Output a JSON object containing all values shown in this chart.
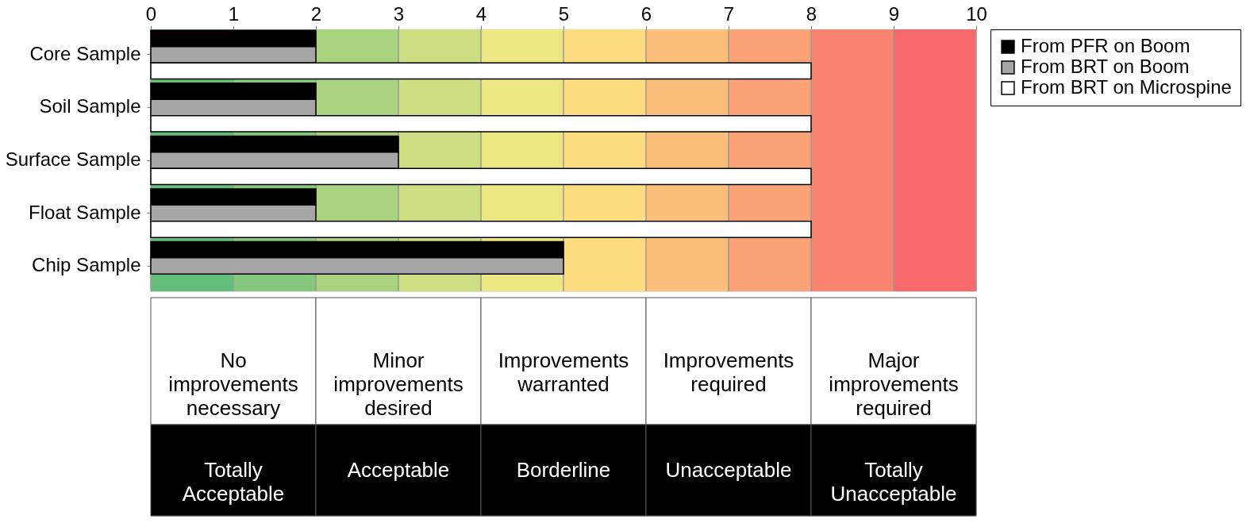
{
  "chart_data": {
    "type": "bar",
    "orientation": "horizontal",
    "categories": [
      "Core Sample",
      "Soil Sample",
      "Surface Sample",
      "Float Sample",
      "Chip Sample"
    ],
    "series": [
      {
        "name": "From PFR on Boom",
        "color": "#000000",
        "values": [
          2,
          2,
          3,
          2,
          5
        ]
      },
      {
        "name": "From BRT on Boom",
        "color": "#a6a6a6",
        "values": [
          2,
          2,
          3,
          2,
          5
        ]
      },
      {
        "name": "From BRT on Microspine",
        "color": "#ffffff",
        "values": [
          8,
          8,
          8,
          8,
          null
        ]
      }
    ],
    "xlim": [
      0,
      10
    ],
    "xticks": [
      0,
      1,
      2,
      3,
      4,
      5,
      6,
      7,
      8,
      9,
      10
    ],
    "grid": "x",
    "legend": "right",
    "bands": [
      {
        "axis": "x",
        "from": 0,
        "to": 1,
        "label": null,
        "color": "#63be7b"
      },
      {
        "axis": "x",
        "from": 1,
        "to": 2,
        "label": null,
        "color": "#85c87d"
      },
      {
        "axis": "x",
        "from": 2,
        "to": 3,
        "label": null,
        "color": "#a9d27f"
      },
      {
        "axis": "x",
        "from": 3,
        "to": 4,
        "label": null,
        "color": "#ccdd82"
      },
      {
        "axis": "x",
        "from": 4,
        "to": 5,
        "label": null,
        "color": "#ece683"
      },
      {
        "axis": "x",
        "from": 5,
        "to": 6,
        "label": null,
        "color": "#fedd81"
      },
      {
        "axis": "x",
        "from": 6,
        "to": 7,
        "label": null,
        "color": "#fcbf7b"
      },
      {
        "axis": "x",
        "from": 7,
        "to": 8,
        "label": null,
        "color": "#fba276"
      },
      {
        "axis": "x",
        "from": 8,
        "to": 9,
        "label": null,
        "color": "#f98570"
      },
      {
        "axis": "x",
        "from": 9,
        "to": 10,
        "label": null,
        "color": "#f8696b"
      }
    ],
    "annotations": [
      "No improvements necessary",
      "Minor improvements desired",
      "Improvements warranted",
      "Improvements required",
      "Major improvements required",
      "Totally Acceptable",
      "Acceptable",
      "Borderline",
      "Unacceptable",
      "Totally Unacceptable"
    ]
  }
}
